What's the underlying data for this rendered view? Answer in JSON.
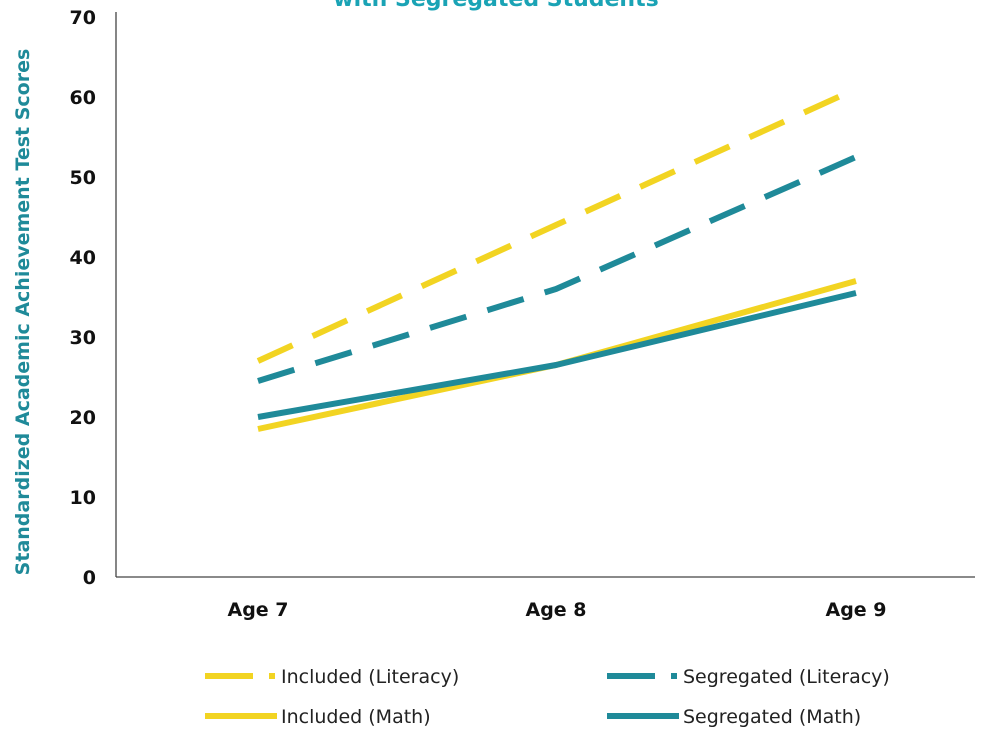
{
  "chart_data": {
    "type": "line",
    "title": "with Segregated Students",
    "xlabel": "",
    "ylabel": "Standardized Academic Achievement Test Scores",
    "categories": [
      "Age 7",
      "Age 8",
      "Age 9"
    ],
    "ylim": [
      0,
      70
    ],
    "yticks": [
      0,
      10,
      20,
      30,
      40,
      50,
      60,
      70
    ],
    "grid": false,
    "legend_position": "bottom",
    "series": [
      {
        "name": "Included (Literacy)",
        "values": [
          27,
          44,
          61
        ],
        "color": "#f2d422",
        "style": "dashed"
      },
      {
        "name": "Segregated (Literacy)",
        "values": [
          24.5,
          36,
          52.5
        ],
        "color": "#1f8a99",
        "style": "dashed"
      },
      {
        "name": "Included (Math)",
        "values": [
          18.5,
          26.5,
          37
        ],
        "color": "#f2d422",
        "style": "solid"
      },
      {
        "name": "Segregated (Math)",
        "values": [
          20,
          26.5,
          35.5
        ],
        "color": "#1f8a99",
        "style": "solid"
      }
    ],
    "title_color": "#1aa3b5",
    "ylabel_color": "#1f8a99"
  }
}
